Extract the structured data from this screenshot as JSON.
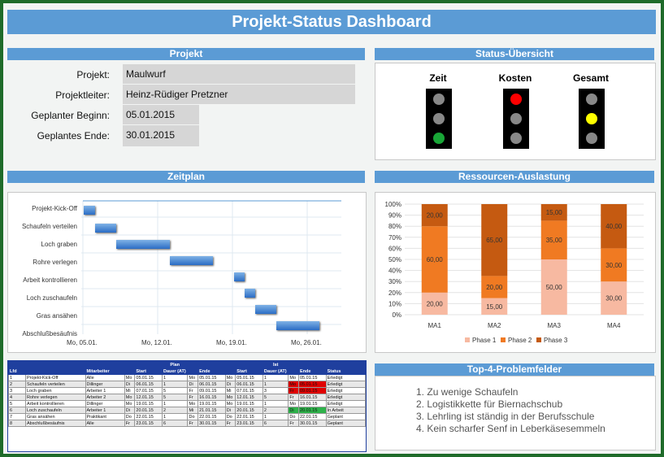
{
  "title": "Projekt-Status Dashboard",
  "projekt": {
    "header": "Projekt",
    "rows": [
      {
        "label": "Projekt:",
        "value": "Maulwurf"
      },
      {
        "label": "Projektleiter:",
        "value": "Heinz-Rüdiger Pretzner"
      },
      {
        "label": "Geplanter Beginn:",
        "value": "05.01.2015"
      },
      {
        "label": "Geplantes Ende:",
        "value": "30.01.2015"
      }
    ]
  },
  "status": {
    "header": "Status-Übersicht",
    "lights": [
      {
        "label": "Zeit",
        "lamps": [
          "#888888",
          "#888888",
          "#19a637"
        ]
      },
      {
        "label": "Kosten",
        "lamps": [
          "#ff0000",
          "#888888",
          "#888888"
        ]
      },
      {
        "label": "Gesamt",
        "lamps": [
          "#888888",
          "#ffff00",
          "#888888"
        ]
      }
    ]
  },
  "zeitplan": {
    "header": "Zeitplan",
    "tasks": [
      "Projekt-Kick-Off",
      "Schaufeln verteilen",
      "Loch graben",
      "Rohre verlegen",
      "Arbeit kontrollieren",
      "Loch zuschaufeln",
      "Gras ansähen",
      "Abschlußbesäufnis"
    ],
    "ticks": [
      "Mo, 05.01.",
      "Mo, 12.01.",
      "Mo, 19.01.",
      "Mo, 26.01."
    ]
  },
  "ressourcen": {
    "header": "Ressourcen-Auslastung",
    "chart_data": {
      "type": "bar",
      "stacked": true,
      "categories": [
        "MA1",
        "MA2",
        "MA3",
        "MA4"
      ],
      "series": [
        {
          "name": "Phase 1",
          "color": "#f7b9a1",
          "values": [
            20,
            15,
            50,
            30
          ]
        },
        {
          "name": "Phase 2",
          "color": "#f07a22",
          "values": [
            60,
            20,
            35,
            30
          ]
        },
        {
          "name": "Phase 3",
          "color": "#c55a11",
          "values": [
            20,
            65,
            15,
            40
          ]
        }
      ],
      "labels": [
        [
          "20,00",
          "60,00",
          "20,00"
        ],
        [
          "15,00",
          "20,00",
          "65,00"
        ],
        [
          "50,00",
          "35,00",
          "15,00"
        ],
        [
          "30,00",
          "30,00",
          "40,00"
        ]
      ],
      "yticks": [
        "100%",
        "90%",
        "80%",
        "70%",
        "60%",
        "50%",
        "40%",
        "30%",
        "20%",
        "10%",
        "0%"
      ],
      "ylim": [
        0,
        100
      ],
      "legend": "bottom"
    }
  },
  "tabelle": {
    "group_plan": "Plan",
    "group_ist": "Ist",
    "headers": [
      "Lfd",
      "Mitarbeiter",
      "Start",
      "",
      "Dauer (AT)",
      "Ende",
      "",
      "Start",
      "",
      "Dauer (AT)",
      "Ende",
      "",
      "Status"
    ],
    "rows": [
      [
        "1",
        "Projekt-Kick-Off",
        "Alle",
        "Mo",
        "05.01.15",
        "1",
        "Mo",
        "05.01.15",
        "Mo",
        "05.01.15",
        "1",
        "Mo",
        "05.01.15",
        "Erledigt"
      ],
      [
        "2",
        "Schaufeln verteilen",
        "Dillinger",
        "Di",
        "06.01.15",
        "1",
        "Di",
        "06.01.15",
        "Di",
        "06.01.15",
        "1",
        "Mo",
        "05.01.15",
        "Erledigt"
      ],
      [
        "3",
        "Loch graben",
        "Arbeiter 1",
        "Mi",
        "07.01.15",
        "5",
        "Fr",
        "09.01.15",
        "Mi",
        "07.01.15",
        "3",
        "Fr",
        "09.01.15",
        "Erledigt"
      ],
      [
        "4",
        "Rohre verlegen",
        "Arbeiter 2",
        "Mo",
        "12.01.15",
        "5",
        "Fr",
        "16.01.15",
        "Mo",
        "12.01.15",
        "5",
        "Fr",
        "16.01.15",
        "Erledigt"
      ],
      [
        "5",
        "Arbeit kontrollieren",
        "Dillinger",
        "Mo",
        "19.01.15",
        "1",
        "Mo",
        "19.01.15",
        "Mo",
        "19.01.15",
        "1",
        "Mo",
        "19.01.15",
        "Erledigt"
      ],
      [
        "6",
        "Loch zuschaufeln",
        "Arbeiter 1",
        "Di",
        "20.01.15",
        "2",
        "Mi",
        "21.01.15",
        "Di",
        "20.01.15",
        "2",
        "Di",
        "20.01.15",
        "In Arbeit"
      ],
      [
        "7",
        "Gras ansähen",
        "Praktikant",
        "Do",
        "22.01.15",
        "1",
        "Do",
        "22.01.15",
        "Do",
        "22.01.15",
        "1",
        "Do",
        "22.01.15",
        "Geplant"
      ],
      [
        "8",
        "Abschlußbesäufnis",
        "Alle",
        "Fr",
        "23.01.15",
        "6",
        "Fr",
        "30.01.15",
        "Fr",
        "23.01.15",
        "6",
        "Fr",
        "30.01.15",
        "Geplant"
      ]
    ]
  },
  "probleme": {
    "header": "Top-4-Problemfelder",
    "items": [
      "Zu wenige Schaufeln",
      "Logistikkette für Biernachschub",
      "Lehrling ist ständig in der Berufsschule",
      "Kein scharfer Senf in Leberkäsesemmeln"
    ]
  }
}
